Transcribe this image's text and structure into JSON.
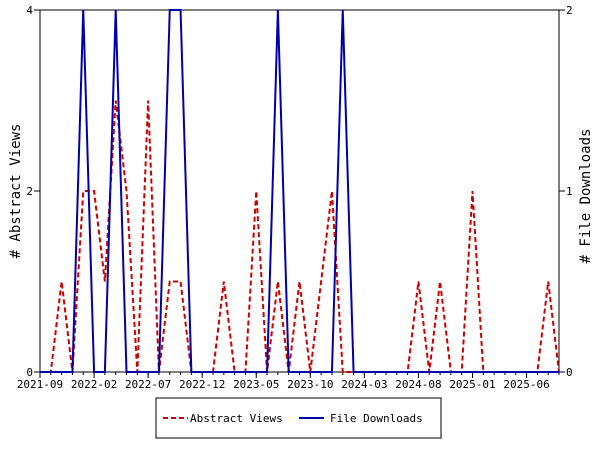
{
  "chart_data": {
    "type": "line",
    "title": "",
    "xlabel": "",
    "ylabel": "# Abstract Views",
    "y2label": "# File Downloads",
    "ylim": [
      0,
      4
    ],
    "y2lim": [
      0,
      2
    ],
    "yticks": [
      "0",
      "2",
      "4"
    ],
    "y2ticks": [
      "0",
      "1",
      "2"
    ],
    "x_tick_labels": [
      "2021-09",
      "2022-02",
      "2022-07",
      "2022-12",
      "2023-05",
      "2023-10",
      "2024-03",
      "2024-08",
      "2025-01",
      "2025-06"
    ],
    "x_months": [
      "2021-09",
      "2021-10",
      "2021-11",
      "2021-12",
      "2022-01",
      "2022-02",
      "2022-03",
      "2022-04",
      "2022-05",
      "2022-06",
      "2022-07",
      "2022-08",
      "2022-09",
      "2022-10",
      "2022-11",
      "2022-12",
      "2023-01",
      "2023-02",
      "2023-03",
      "2023-04",
      "2023-05",
      "2023-06",
      "2023-07",
      "2023-08",
      "2023-09",
      "2023-10",
      "2023-11",
      "2023-12",
      "2024-01",
      "2024-02",
      "2024-03",
      "2024-04",
      "2024-05",
      "2024-06",
      "2024-07",
      "2024-08",
      "2024-09",
      "2024-10",
      "2024-11",
      "2024-12",
      "2025-01",
      "2025-02",
      "2025-03",
      "2025-04",
      "2025-05",
      "2025-06",
      "2025-07",
      "2025-08",
      "2025-09"
    ],
    "legend_position": "bottom",
    "series": [
      {
        "name": "Abstract Views",
        "axis": "left",
        "color": "#cc0000",
        "style": "dashed",
        "values": [
          0,
          0,
          1,
          0,
          2,
          2,
          1,
          3,
          2,
          0,
          3,
          0,
          1,
          1,
          0,
          0,
          0,
          1,
          0,
          0,
          2,
          0,
          1,
          0,
          1,
          0,
          1,
          2,
          0,
          0,
          0,
          0,
          0,
          0,
          0,
          1,
          0,
          1,
          0,
          0,
          2,
          0,
          0,
          0,
          0,
          0,
          0,
          1,
          0
        ]
      },
      {
        "name": "File Downloads",
        "axis": "right",
        "color": "#0000aa",
        "style": "solid",
        "values": [
          0,
          0,
          0,
          0,
          2,
          0,
          0,
          2,
          0,
          0,
          0,
          0,
          2,
          2,
          0,
          0,
          0,
          0,
          0,
          0,
          0,
          0,
          2,
          0,
          0,
          0,
          0,
          0,
          2,
          0,
          0,
          0,
          0,
          0,
          0,
          0,
          0,
          0,
          0,
          0,
          0,
          0,
          0,
          0,
          0,
          0,
          0,
          0,
          0
        ]
      }
    ]
  }
}
